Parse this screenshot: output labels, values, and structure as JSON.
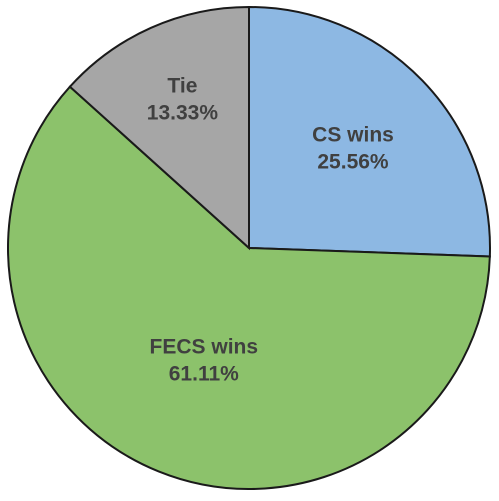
{
  "chart_data": {
    "type": "pie",
    "title": "",
    "start_angle_deg": 0,
    "direction": "clockwise",
    "slices": [
      {
        "label": "CS wins",
        "value": 25.56,
        "value_label": "25.56%",
        "color": "#8db8e3"
      },
      {
        "label": "FECS wins",
        "value": 61.11,
        "value_label": "61.11%",
        "color": "#8cc26b"
      },
      {
        "label": "Tie",
        "value": 13.33,
        "value_label": "13.33%",
        "color": "#a6a6a6"
      }
    ],
    "outline_color": "#1a1a1a",
    "label_color": "#404040"
  }
}
